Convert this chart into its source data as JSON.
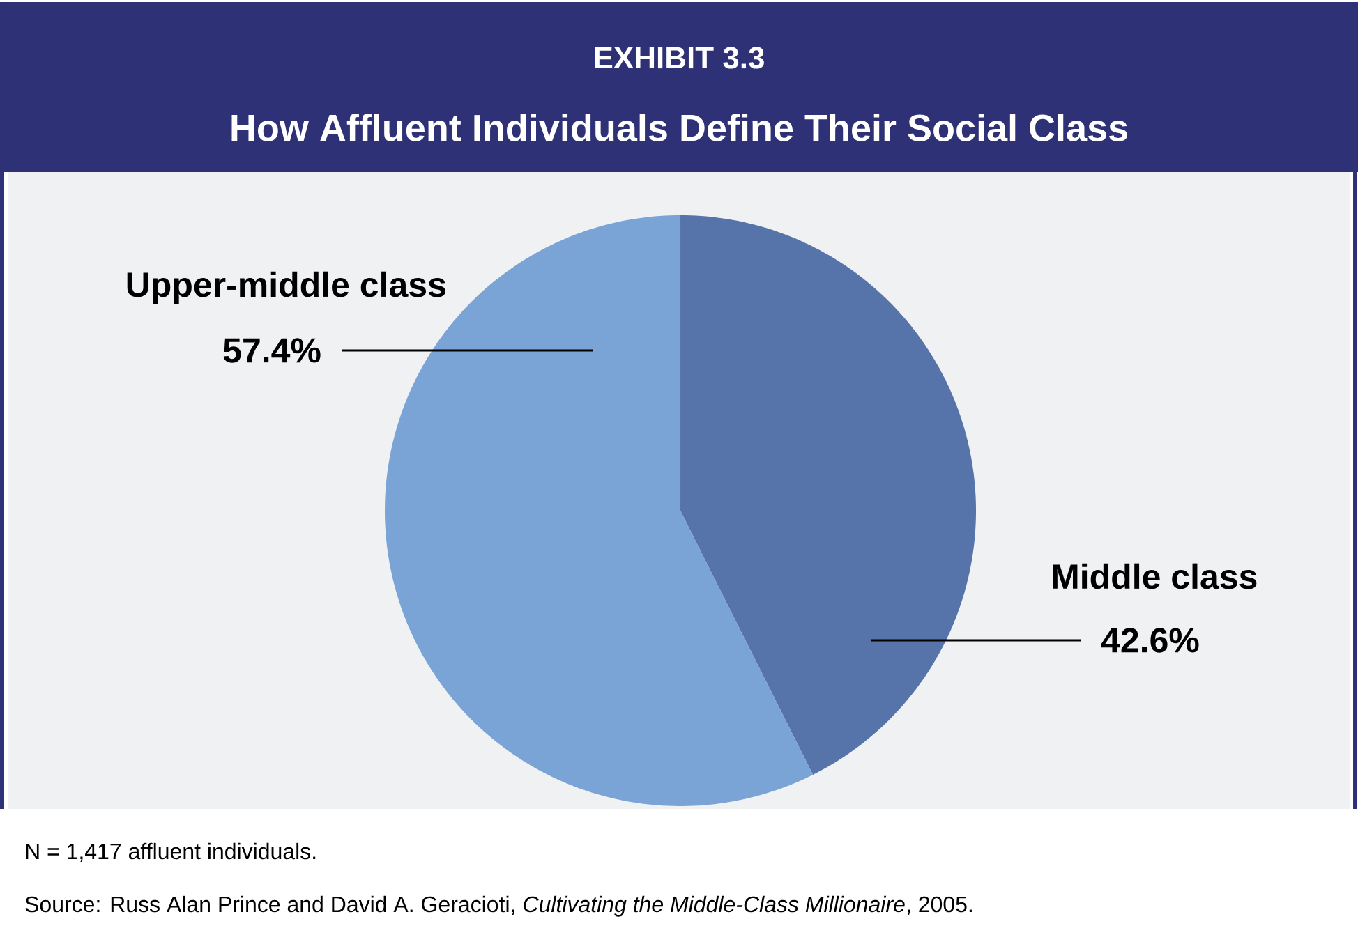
{
  "chart_data": {
    "type": "pie",
    "title": "EXHIBIT 3.3",
    "subtitle": "How Affluent Individuals Define Their Social Class",
    "categories": [
      "Middle class",
      "Upper-middle class"
    ],
    "values": [
      42.6,
      57.4
    ],
    "value_labels": [
      "42.6%",
      "57.4%"
    ],
    "colors": [
      "#5674a9",
      "#7ba4d6"
    ],
    "annotations": [
      "N = 1,417 affluent individuals.",
      "Source: Russ Alan Prince and David A. Geracioti, *Cultivating the Middle-Class Millionaire*, 2005."
    ]
  }
}
